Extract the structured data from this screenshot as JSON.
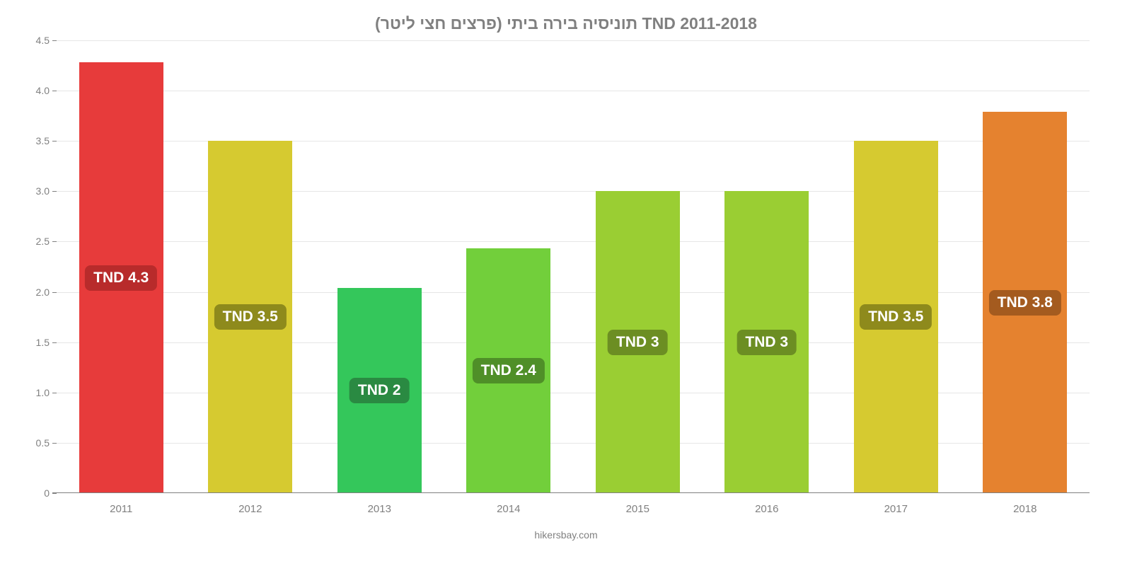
{
  "chart": {
    "type": "bar",
    "title": "תוניסיה בירה ביתי (פרצים חצי ליטר) TND 2011-2018",
    "title_fontsize": 23,
    "title_color": "#808080",
    "footer": "hikersbay.com",
    "footer_fontsize": 14,
    "footer_color": "#808080",
    "background_color": "#ffffff",
    "grid_color": "#e6e6e6",
    "axis_color": "#808080",
    "tick_label_color": "#808080",
    "tick_fontsize": 14,
    "xlabel_fontsize": 15,
    "bar_width_ratio": 0.65,
    "value_label_fontsize": 21,
    "value_label_text_color": "#ffffff",
    "ylim": [
      0,
      4.5
    ],
    "ytick_step": 0.5,
    "yticks": [
      "0",
      "0.5",
      "1.0",
      "1.5",
      "2.0",
      "2.5",
      "3.0",
      "3.5",
      "4.0",
      "4.5"
    ],
    "categories": [
      "2011",
      "2012",
      "2013",
      "2014",
      "2015",
      "2016",
      "2017",
      "2018"
    ],
    "values": [
      4.28,
      3.5,
      2.04,
      2.43,
      3.0,
      3.0,
      3.5,
      3.79
    ],
    "value_labels": [
      "TND 4.3",
      "TND 3.5",
      "TND 2",
      "TND 2.4",
      "TND 3",
      "TND 3",
      "TND 3.5",
      "TND 3.8"
    ],
    "bar_colors": [
      "#e73b3b",
      "#d6ca30",
      "#34c75b",
      "#72cf3b",
      "#9ace33",
      "#9ace33",
      "#d6ca30",
      "#e5822f"
    ],
    "label_bg_colors": [
      "#b82b2b",
      "#8e8a1c",
      "#2a8a42",
      "#4f8f28",
      "#6c8e23",
      "#6c8e23",
      "#8e8a1c",
      "#a45b1f"
    ]
  }
}
